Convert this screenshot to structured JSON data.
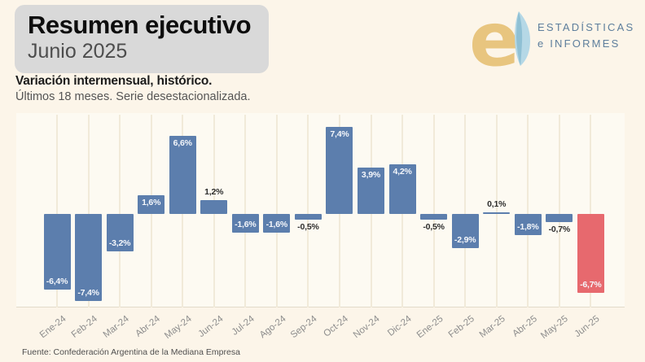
{
  "header": {
    "title": "Resumen ejecutivo",
    "subtitle": "Junio 2025"
  },
  "logo": {
    "line1": "ESTADÍSTICAS",
    "line2": "e INFORMES",
    "mark": "ei-monogram",
    "gold": "#e8c57f",
    "light_blue": "#b5d8e6",
    "mid_blue": "#8fc0d4",
    "text_color": "#5d7e9c"
  },
  "chart_heading": {
    "title": "Variación intermensual, histórico.",
    "subtitle": "Últimos 18 meses. Serie desestacionalizada."
  },
  "chart_data": {
    "type": "bar",
    "title": "Variación intermensual, histórico.",
    "subtitle": "Últimos 18 meses. Serie desestacionalizada.",
    "xlabel": "",
    "ylabel": "",
    "ylim": [
      -8.2,
      8.5
    ],
    "grid": "vertical-per-category",
    "legend": "none",
    "bar_color": "#5c7ead",
    "highlight_color": "#e7696e",
    "highlight_index": 17,
    "categories": [
      "Ene-24",
      "Feb-24",
      "Mar-24",
      "Abr-24",
      "May-24",
      "Jun-24",
      "Jul-24",
      "Ago-24",
      "Sep-24",
      "Oct-24",
      "Nov-24",
      "Dic-24",
      "Ene-25",
      "Feb-25",
      "Mar-25",
      "Abr-25",
      "May-25",
      "Jun-25"
    ],
    "values": [
      -6.4,
      -7.4,
      -3.2,
      1.6,
      6.6,
      1.2,
      -1.6,
      -1.6,
      -0.5,
      7.4,
      3.9,
      4.2,
      -0.5,
      -2.9,
      0.1,
      -1.8,
      -0.7,
      -6.7
    ],
    "value_labels": [
      "-6,4%",
      "-7,4%",
      "-3,2%",
      "1,6%",
      "6,6%",
      "1,2%",
      "-1,6%",
      "-1,6%",
      "-0,5%",
      "7,4%",
      "3,9%",
      "4,2%",
      "-0,5%",
      "-2,9%",
      "0,1%",
      "-1,8%",
      "-0,7%",
      "-6,7%"
    ]
  },
  "footer": {
    "source": "Fuente: Confederación Argentina de la Mediana Empresa"
  }
}
